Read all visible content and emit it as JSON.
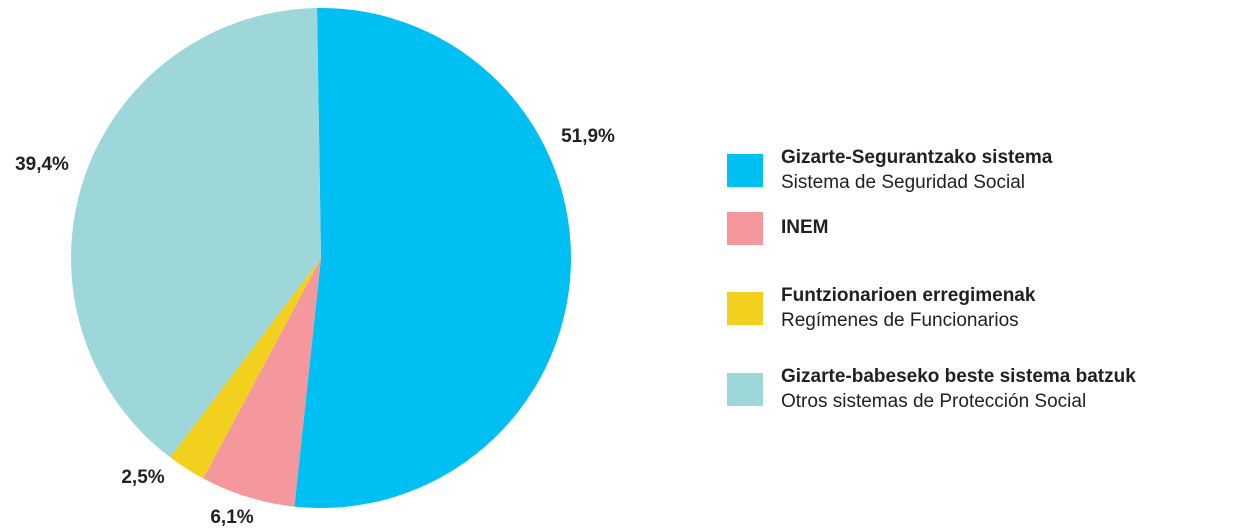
{
  "chart_data": {
    "type": "pie",
    "categories": [
      "Gizarte-Segurantzako sistema",
      "INEM",
      "Funtzionarioen erregimenak",
      "Gizarte-babeseko beste sistema batzuk"
    ],
    "category_subtitles": [
      "Sistema de Seguridad Social",
      null,
      "Regímenes de Funcionarios",
      "Otros sistemas de Protección Social"
    ],
    "values": [
      51.9,
      6.1,
      2.5,
      39.4
    ],
    "value_labels": [
      "51,9%",
      "6,1%",
      "2,5%",
      "39,4%"
    ],
    "colors": [
      "#00bff3",
      "#f4989d",
      "#f2d01e",
      "#9dd7da"
    ],
    "legend": "right"
  }
}
